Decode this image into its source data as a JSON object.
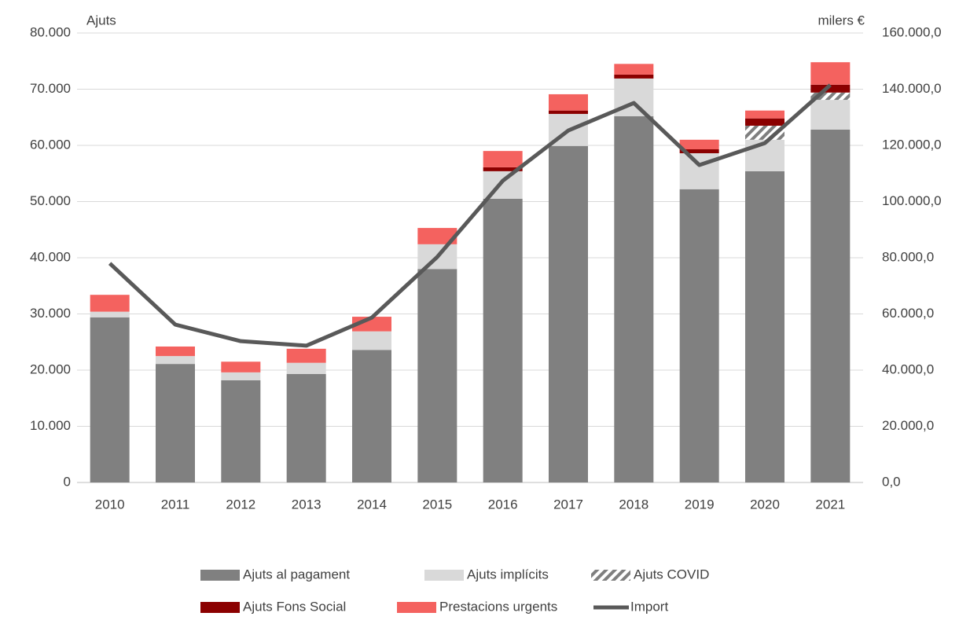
{
  "chart_data": {
    "type": "bar",
    "y_label": "Ajuts",
    "y2_label": "milers €",
    "categories": [
      "2010",
      "2011",
      "2012",
      "2013",
      "2014",
      "2015",
      "2016",
      "2017",
      "2018",
      "2019",
      "2020",
      "2021"
    ],
    "series": [
      {
        "name": "Ajuts al pagament",
        "color": "#808080",
        "values": [
          29400,
          21100,
          18200,
          19300,
          23600,
          38000,
          50500,
          59900,
          65200,
          52200,
          55400,
          62800
        ]
      },
      {
        "name": "Ajuts implícits",
        "color": "#d9d9d9",
        "values": [
          1000,
          1400,
          1400,
          2000,
          3300,
          4400,
          4900,
          5700,
          6700,
          6400,
          5600,
          5300
        ]
      },
      {
        "name": "Ajuts COVID",
        "color": "#7f7f7f",
        "pattern": "diagonal",
        "values": [
          0,
          0,
          0,
          0,
          0,
          0,
          0,
          0,
          0,
          0,
          2500,
          1300
        ]
      },
      {
        "name": "Ajuts Fons Social",
        "color": "#8b0000",
        "values": [
          0,
          0,
          0,
          0,
          0,
          0,
          700,
          600,
          700,
          700,
          1300,
          1400
        ]
      },
      {
        "name": "Prestacions urgents",
        "color": "#f4625f",
        "values": [
          3000,
          1700,
          1900,
          2500,
          2600,
          2900,
          2900,
          2900,
          1900,
          1700,
          1400,
          4000
        ]
      },
      {
        "name": "Import",
        "type": "line",
        "axis": "y2",
        "color": "#595959",
        "values": [
          78000,
          56200,
          50300,
          48700,
          58700,
          80300,
          107400,
          125300,
          135100,
          113000,
          120800,
          141500
        ]
      }
    ],
    "ylim": [
      0,
      80000
    ],
    "yticks": [
      0,
      {
        "value": 10000,
        "label": "10.000"
      },
      {
        "value": 20000,
        "label": "20.000"
      },
      {
        "value": 30000,
        "label": "30.000"
      },
      {
        "value": 40000,
        "label": "40.000"
      },
      {
        "value": 50000,
        "label": "50.000"
      },
      {
        "value": 60000,
        "label": "60.000"
      },
      {
        "value": 70000,
        "label": "70.000"
      },
      {
        "value": 80000,
        "label": "80.000"
      }
    ],
    "y2lim": [
      0,
      160000
    ],
    "y2ticks": [
      {
        "value": 0,
        "label": "0,0"
      },
      {
        "value": 20000,
        "label": "20.000,0"
      },
      {
        "value": 40000,
        "label": "40.000,0"
      },
      {
        "value": 60000,
        "label": "60.000,0"
      },
      {
        "value": 80000,
        "label": "80.000,0"
      },
      {
        "value": 100000,
        "label": "100.000,0"
      },
      {
        "value": 120000,
        "label": "120.000,0"
      },
      {
        "value": 140000,
        "label": "140.000,0"
      },
      {
        "value": 160000,
        "label": "160.000,0"
      }
    ],
    "grid": true,
    "legend": "bottom"
  }
}
